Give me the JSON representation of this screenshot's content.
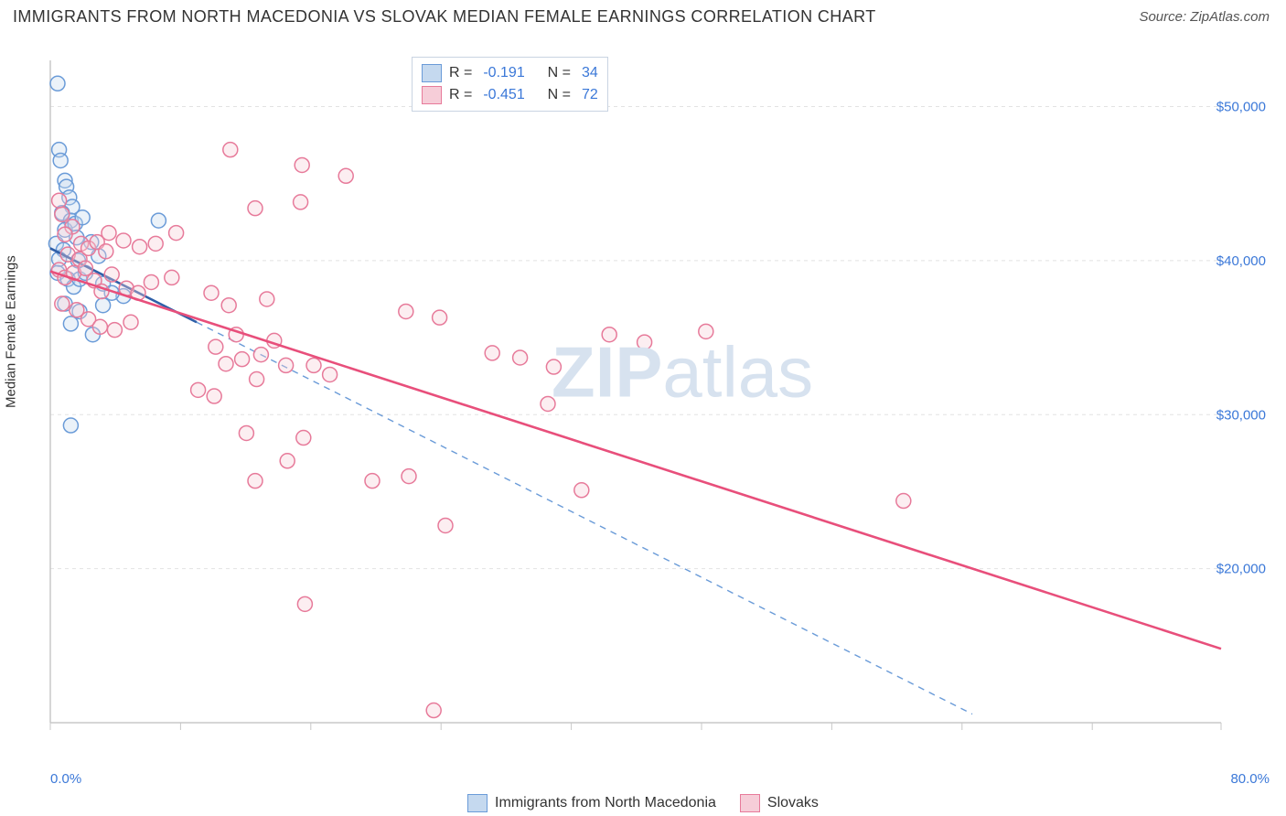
{
  "title": "IMMIGRANTS FROM NORTH MACEDONIA VS SLOVAK MEDIAN FEMALE EARNINGS CORRELATION CHART",
  "source": "Source: ZipAtlas.com",
  "ylabel": "Median Female Earnings",
  "watermark_a": "ZIP",
  "watermark_b": "atlas",
  "chart": {
    "type": "scatter-with-regression",
    "background_color": "#ffffff",
    "grid_color": "#e2e2e2",
    "axis_color": "#c8c8c8",
    "tick_label_color": "#3b78d8",
    "font_size_title": 18,
    "font_size_axis": 15,
    "xlim": [
      0,
      80
    ],
    "ylim": [
      10000,
      53000
    ],
    "x_axis_label_left": "0.0%",
    "x_axis_label_right": "80.0%",
    "y_gridlines": [
      20000,
      30000,
      40000,
      50000
    ],
    "y_tick_labels": [
      "$20,000",
      "$30,000",
      "$40,000",
      "$50,000"
    ],
    "x_ticks_minor": [
      0,
      8.9,
      17.8,
      26.7,
      35.6,
      44.5,
      53.4,
      62.3,
      71.2,
      80
    ],
    "marker_radius": 8,
    "marker_stroke_width": 1.5,
    "marker_fill_opacity": 0.35,
    "regression_line_width": 2.6,
    "dashed_extension_dash": "7 6",
    "series": [
      {
        "name": "Immigrants from North Macedonia",
        "color_stroke": "#6a9bd8",
        "color_fill": "#c5d9ef",
        "line_color": "#2f5fa8",
        "R": "-0.191",
        "N": "34",
        "regression": {
          "x1": 0,
          "y1": 40800,
          "x2": 10,
          "y2": 36000,
          "extend_to_x": 63
        },
        "points": [
          [
            0.5,
            51500
          ],
          [
            0.6,
            47200
          ],
          [
            0.7,
            46500
          ],
          [
            1.0,
            45200
          ],
          [
            1.1,
            44800
          ],
          [
            1.3,
            44100
          ],
          [
            1.5,
            43500
          ],
          [
            0.8,
            43100
          ],
          [
            1.4,
            42600
          ],
          [
            1.0,
            42000
          ],
          [
            1.7,
            42400
          ],
          [
            2.2,
            42800
          ],
          [
            1.8,
            41500
          ],
          [
            0.4,
            41100
          ],
          [
            0.9,
            40700
          ],
          [
            0.6,
            40100
          ],
          [
            1.9,
            40000
          ],
          [
            2.8,
            41200
          ],
          [
            3.3,
            40300
          ],
          [
            0.5,
            39200
          ],
          [
            1.2,
            38800
          ],
          [
            1.6,
            38300
          ],
          [
            2.0,
            38800
          ],
          [
            2.4,
            39200
          ],
          [
            3.6,
            38500
          ],
          [
            7.4,
            42600
          ],
          [
            1.0,
            37200
          ],
          [
            2.0,
            36700
          ],
          [
            3.6,
            37100
          ],
          [
            1.4,
            35900
          ],
          [
            2.9,
            35200
          ],
          [
            5.0,
            37700
          ],
          [
            4.2,
            37900
          ],
          [
            1.4,
            29300
          ]
        ]
      },
      {
        "name": "Slovaks",
        "color_stroke": "#e77a9a",
        "color_fill": "#f6cdd8",
        "line_color": "#e84f7b",
        "R": "-0.451",
        "N": "72",
        "regression": {
          "x1": 0,
          "y1": 39300,
          "x2": 80,
          "y2": 14800
        },
        "points": [
          [
            0.6,
            43900
          ],
          [
            0.8,
            43000
          ],
          [
            1.5,
            42200
          ],
          [
            1.0,
            41700
          ],
          [
            2.1,
            41100
          ],
          [
            1.2,
            40400
          ],
          [
            2.0,
            40100
          ],
          [
            2.6,
            40800
          ],
          [
            3.2,
            41200
          ],
          [
            3.8,
            40600
          ],
          [
            4.0,
            41800
          ],
          [
            5.0,
            41300
          ],
          [
            6.1,
            40900
          ],
          [
            7.2,
            41100
          ],
          [
            8.6,
            41800
          ],
          [
            0.6,
            39400
          ],
          [
            1.0,
            38900
          ],
          [
            1.6,
            39200
          ],
          [
            2.4,
            39500
          ],
          [
            3.0,
            38700
          ],
          [
            3.5,
            38000
          ],
          [
            4.2,
            39100
          ],
          [
            5.2,
            38200
          ],
          [
            6.0,
            37900
          ],
          [
            6.9,
            38600
          ],
          [
            8.3,
            38900
          ],
          [
            0.8,
            37200
          ],
          [
            1.8,
            36800
          ],
          [
            2.6,
            36200
          ],
          [
            3.4,
            35700
          ],
          [
            4.4,
            35500
          ],
          [
            5.5,
            36000
          ],
          [
            12.3,
            47200
          ],
          [
            14.0,
            43400
          ],
          [
            17.2,
            46200
          ],
          [
            17.1,
            43800
          ],
          [
            20.2,
            45500
          ],
          [
            11.0,
            37900
          ],
          [
            12.2,
            37100
          ],
          [
            14.8,
            37500
          ],
          [
            12.7,
            35200
          ],
          [
            11.3,
            34400
          ],
          [
            15.3,
            34800
          ],
          [
            12.0,
            33300
          ],
          [
            13.1,
            33600
          ],
          [
            14.4,
            33900
          ],
          [
            16.1,
            33200
          ],
          [
            18.0,
            33200
          ],
          [
            19.1,
            32600
          ],
          [
            24.3,
            36700
          ],
          [
            26.6,
            36300
          ],
          [
            30.2,
            34000
          ],
          [
            32.1,
            33700
          ],
          [
            34.4,
            33100
          ],
          [
            38.2,
            35200
          ],
          [
            44.8,
            35400
          ],
          [
            10.1,
            31600
          ],
          [
            11.2,
            31200
          ],
          [
            14.1,
            32300
          ],
          [
            13.4,
            28800
          ],
          [
            17.3,
            28500
          ],
          [
            16.2,
            27000
          ],
          [
            22.0,
            25700
          ],
          [
            24.5,
            26000
          ],
          [
            14.0,
            25700
          ],
          [
            17.4,
            17700
          ],
          [
            27.0,
            22800
          ],
          [
            34.0,
            30700
          ],
          [
            36.3,
            25100
          ],
          [
            58.3,
            24400
          ],
          [
            26.2,
            10800
          ],
          [
            40.6,
            34700
          ]
        ]
      }
    ],
    "legend_top": [
      {
        "swatch": "blue",
        "r_label": "R =",
        "r_val": "-0.191",
        "n_label": "N =",
        "n_val": "34"
      },
      {
        "swatch": "pink",
        "r_label": "R =",
        "r_val": "-0.451",
        "n_label": "N =",
        "n_val": "72"
      }
    ],
    "legend_bottom": [
      {
        "swatch": "blue",
        "label": "Immigrants from North Macedonia"
      },
      {
        "swatch": "pink",
        "label": "Slovaks"
      }
    ]
  }
}
